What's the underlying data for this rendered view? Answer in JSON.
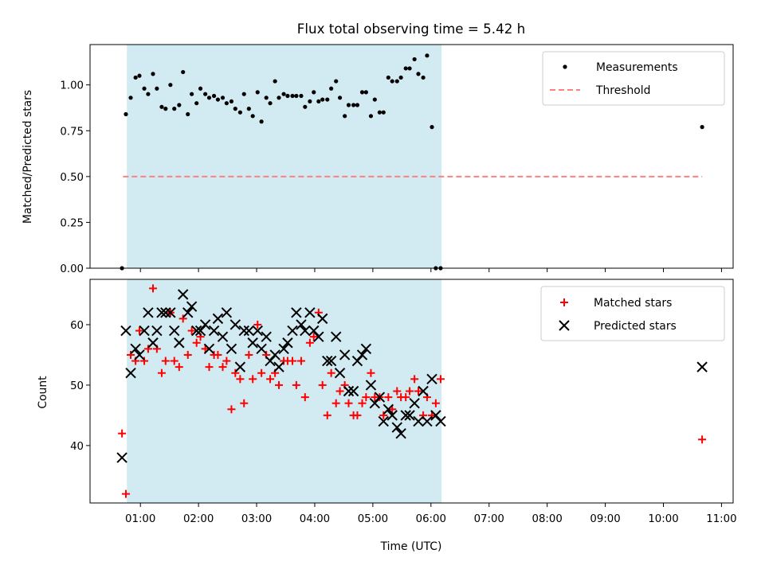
{
  "chart_data": [
    {
      "type": "scatter",
      "title": "Flux total observing time = 5.42 h",
      "xlabel": "",
      "ylabel": "Matched/Predicted stars",
      "ylim": [
        0.0,
        1.22
      ],
      "yticks": [
        "0.00",
        "0.25",
        "0.50",
        "0.75",
        "1.00"
      ],
      "ytick_values": [
        0.0,
        0.25,
        0.5,
        0.75,
        1.0
      ],
      "shaded_span": {
        "start": "00:46",
        "end": "06:11",
        "color": "#add8e6"
      },
      "legend": {
        "position": "upper right"
      },
      "threshold": {
        "name": "Threshold",
        "value": 0.5,
        "x_start": "00:42",
        "x_end": "10:40",
        "color": "#ff8080",
        "style": "dashed"
      },
      "series": [
        {
          "name": "Measurements",
          "marker": "point",
          "color": "#000000",
          "x": [
            "00:41",
            "00:45",
            "00:50",
            "00:55",
            "00:59",
            "01:04",
            "01:08",
            "01:13",
            "01:17",
            "01:22",
            "01:26",
            "01:31",
            "01:35",
            "01:40",
            "01:44",
            "01:49",
            "01:53",
            "01:58",
            "02:02",
            "02:07",
            "02:11",
            "02:16",
            "02:20",
            "02:25",
            "02:29",
            "02:34",
            "02:38",
            "02:43",
            "02:47",
            "02:52",
            "02:56",
            "03:01",
            "03:05",
            "03:10",
            "03:14",
            "03:19",
            "03:23",
            "03:28",
            "03:32",
            "03:37",
            "03:41",
            "03:46",
            "03:50",
            "03:55",
            "03:59",
            "04:04",
            "04:08",
            "04:13",
            "04:17",
            "04:22",
            "04:26",
            "04:31",
            "04:35",
            "04:40",
            "04:44",
            "04:49",
            "04:53",
            "04:58",
            "05:02",
            "05:07",
            "05:11",
            "05:16",
            "05:20",
            "05:25",
            "05:29",
            "05:34",
            "05:38",
            "05:43",
            "05:47",
            "05:52",
            "05:56",
            "06:01",
            "06:05",
            "06:10",
            "10:40"
          ],
          "y": [
            0.0,
            0.84,
            0.93,
            1.04,
            1.05,
            0.98,
            0.95,
            1.06,
            0.98,
            0.88,
            0.87,
            1.0,
            0.87,
            0.89,
            1.07,
            0.84,
            0.95,
            0.9,
            0.98,
            0.95,
            0.93,
            0.94,
            0.92,
            0.93,
            0.9,
            0.91,
            0.87,
            0.85,
            0.95,
            0.87,
            0.83,
            0.96,
            0.8,
            0.93,
            0.9,
            1.02,
            0.93,
            0.95,
            0.94,
            0.94,
            0.94,
            0.94,
            0.88,
            0.91,
            0.96,
            0.91,
            0.92,
            0.92,
            0.98,
            1.02,
            0.93,
            0.83,
            0.89,
            0.89,
            0.89,
            0.96,
            0.96,
            0.83,
            0.92,
            0.85,
            0.85,
            1.04,
            1.02,
            1.02,
            1.04,
            1.09,
            1.09,
            1.14,
            1.06,
            1.04,
            1.16,
            0.77,
            0.0,
            0.0,
            0.77
          ]
        }
      ]
    },
    {
      "type": "scatter",
      "title": "",
      "xlabel": "Time (UTC)",
      "ylabel": "Count",
      "ylim": [
        30.5,
        67.5
      ],
      "yticks": [
        "40",
        "50",
        "60"
      ],
      "ytick_values": [
        40,
        50,
        60
      ],
      "xlim": [
        "00:08",
        "11:12"
      ],
      "xticks": [
        "01:00",
        "02:00",
        "03:00",
        "04:00",
        "05:00",
        "06:00",
        "07:00",
        "08:00",
        "09:00",
        "10:00",
        "11:00"
      ],
      "legend": {
        "position": "upper right"
      },
      "series": [
        {
          "name": "Matched stars",
          "marker": "plus",
          "color": "#ff0000",
          "x": [
            "00:41",
            "00:45",
            "00:50",
            "00:55",
            "00:59",
            "01:04",
            "01:08",
            "01:13",
            "01:17",
            "01:22",
            "01:26",
            "01:31",
            "01:35",
            "01:40",
            "01:44",
            "01:49",
            "01:53",
            "01:58",
            "02:02",
            "02:07",
            "02:11",
            "02:16",
            "02:20",
            "02:25",
            "02:29",
            "02:34",
            "02:38",
            "02:43",
            "02:47",
            "02:52",
            "02:56",
            "03:01",
            "03:05",
            "03:10",
            "03:14",
            "03:19",
            "03:23",
            "03:28",
            "03:32",
            "03:37",
            "03:41",
            "03:46",
            "03:50",
            "03:55",
            "03:59",
            "04:04",
            "04:08",
            "04:13",
            "04:17",
            "04:22",
            "04:26",
            "04:31",
            "04:35",
            "04:40",
            "04:44",
            "04:49",
            "04:53",
            "04:58",
            "05:02",
            "05:07",
            "05:11",
            "05:16",
            "05:20",
            "05:25",
            "05:29",
            "05:34",
            "05:38",
            "05:43",
            "05:47",
            "05:52",
            "05:56",
            "06:01",
            "06:05",
            "06:10",
            "10:40"
          ],
          "y": [
            42,
            32,
            55,
            54,
            59,
            54,
            56,
            66,
            56,
            52,
            54,
            62,
            54,
            53,
            61,
            55,
            59,
            57,
            58,
            56,
            53,
            55,
            55,
            53,
            54,
            46,
            52,
            51,
            47,
            55,
            51,
            60,
            52,
            55,
            51,
            52,
            50,
            54,
            54,
            54,
            50,
            54,
            48,
            57,
            58,
            62,
            50,
            45,
            52,
            47,
            49,
            50,
            47,
            45,
            45,
            47,
            48,
            52,
            48,
            48,
            45,
            48,
            46,
            49,
            48,
            48,
            49,
            51,
            49,
            45,
            48,
            45,
            47,
            51,
            41
          ]
        },
        {
          "name": "Predicted stars",
          "marker": "x",
          "color": "#000000",
          "x": [
            "00:41",
            "00:45",
            "00:50",
            "00:55",
            "00:59",
            "01:04",
            "01:08",
            "01:13",
            "01:17",
            "01:22",
            "01:26",
            "01:31",
            "01:35",
            "01:40",
            "01:44",
            "01:49",
            "01:53",
            "01:58",
            "02:02",
            "02:07",
            "02:11",
            "02:16",
            "02:20",
            "02:25",
            "02:29",
            "02:34",
            "02:38",
            "02:43",
            "02:47",
            "02:52",
            "02:56",
            "03:01",
            "03:05",
            "03:10",
            "03:14",
            "03:19",
            "03:23",
            "03:28",
            "03:32",
            "03:37",
            "03:41",
            "03:46",
            "03:50",
            "03:55",
            "03:59",
            "04:04",
            "04:08",
            "04:13",
            "04:17",
            "04:22",
            "04:26",
            "04:31",
            "04:35",
            "04:40",
            "04:44",
            "04:49",
            "04:53",
            "04:58",
            "05:02",
            "05:07",
            "05:11",
            "05:16",
            "05:20",
            "05:25",
            "05:29",
            "05:34",
            "05:38",
            "05:43",
            "05:47",
            "05:52",
            "05:56",
            "06:01",
            "06:05",
            "06:10",
            "10:40"
          ],
          "y": [
            38,
            59,
            52,
            56,
            55,
            59,
            62,
            57,
            59,
            62,
            62,
            62,
            59,
            57,
            65,
            62,
            63,
            59,
            59,
            60,
            56,
            59,
            61,
            58,
            62,
            56,
            60,
            53,
            59,
            59,
            57,
            59,
            56,
            58,
            54,
            55,
            53,
            56,
            57,
            59,
            62,
            60,
            59,
            62,
            59,
            58,
            61,
            54,
            54,
            58,
            52,
            55,
            49,
            49,
            54,
            55,
            56,
            50,
            47,
            48,
            44,
            46,
            45,
            43,
            42,
            45,
            45,
            47,
            44,
            49,
            44,
            51,
            45,
            44,
            53
          ]
        }
      ]
    }
  ]
}
